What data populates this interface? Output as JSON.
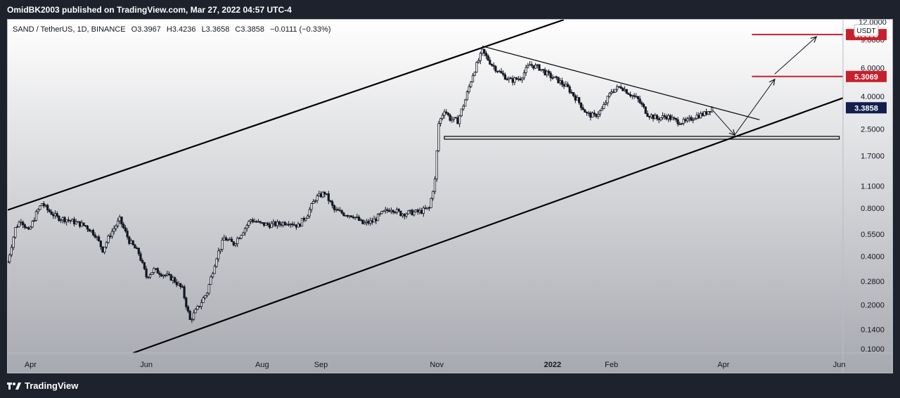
{
  "publish": {
    "text": "OmidBK2003 published on TradingView.com, Mar 27, 2022 04:57 UTC-4"
  },
  "legend": {
    "symbol": "SAND / TetherUS, 1D, BINANCE",
    "open": "O3.3967",
    "high": "H3.4236",
    "low": "L3.3658",
    "close": "C3.3858",
    "change": "−0.0111 (−0.33%)"
  },
  "footer": {
    "brand": "TradingView"
  },
  "colors": {
    "background_top": "#ffffff",
    "background_bottom": "#a7a9b0",
    "candles": "#131722",
    "trendline": "#000000",
    "target_line": "#c8202b",
    "target_label": "#c8202b",
    "last_price_label": "#131d4e"
  },
  "chart_data": {
    "type": "candlestick",
    "symbol": "SAND / TetherUS",
    "interval": "1D",
    "exchange": "BINANCE",
    "currency": "USDT",
    "y_scale": "log",
    "ylim": [
      0.1,
      12.0
    ],
    "y_ticks": [
      "12.0000",
      "9.0000",
      "6.0000",
      "4.0000",
      "2.5000",
      "1.7000",
      "1.1000",
      "0.8000",
      "0.5500",
      "0.4000",
      "0.2800",
      "0.2000",
      "0.1400",
      "0.1000"
    ],
    "x_range": [
      "2021-03-20",
      "2022-06-03"
    ],
    "x_ticks": [
      {
        "label": "Apr",
        "date": "2021-04-01"
      },
      {
        "label": "Jun",
        "date": "2021-06-01"
      },
      {
        "label": "Aug",
        "date": "2021-08-01"
      },
      {
        "label": "Sep",
        "date": "2021-09-01"
      },
      {
        "label": "Nov",
        "date": "2021-11-01"
      },
      {
        "label": "2022",
        "date": "2022-01-01"
      },
      {
        "label": "Feb",
        "date": "2022-02-01"
      },
      {
        "label": "Apr",
        "date": "2022-04-01"
      },
      {
        "label": "Jun",
        "date": "2022-06-01"
      }
    ],
    "price_path": [
      [
        "2021-03-20",
        0.37
      ],
      [
        "2021-03-24",
        0.6
      ],
      [
        "2021-03-27",
        0.68
      ],
      [
        "2021-03-31",
        0.57
      ],
      [
        "2021-04-04",
        0.74
      ],
      [
        "2021-04-07",
        0.86
      ],
      [
        "2021-04-10",
        0.78
      ],
      [
        "2021-04-15",
        0.7
      ],
      [
        "2021-04-20",
        0.68
      ],
      [
        "2021-04-25",
        0.65
      ],
      [
        "2021-04-30",
        0.62
      ],
      [
        "2021-05-05",
        0.55
      ],
      [
        "2021-05-09",
        0.44
      ],
      [
        "2021-05-13",
        0.55
      ],
      [
        "2021-05-18",
        0.68
      ],
      [
        "2021-05-23",
        0.5
      ],
      [
        "2021-05-28",
        0.42
      ],
      [
        "2021-06-01",
        0.3
      ],
      [
        "2021-06-05",
        0.33
      ],
      [
        "2021-06-10",
        0.31
      ],
      [
        "2021-06-15",
        0.29
      ],
      [
        "2021-06-20",
        0.25
      ],
      [
        "2021-06-24",
        0.16
      ],
      [
        "2021-06-28",
        0.19
      ],
      [
        "2021-07-03",
        0.24
      ],
      [
        "2021-07-08",
        0.4
      ],
      [
        "2021-07-12",
        0.52
      ],
      [
        "2021-07-17",
        0.48
      ],
      [
        "2021-07-22",
        0.58
      ],
      [
        "2021-07-26",
        0.68
      ],
      [
        "2021-07-31",
        0.64
      ],
      [
        "2021-08-05",
        0.63
      ],
      [
        "2021-08-10",
        0.64
      ],
      [
        "2021-08-15",
        0.66
      ],
      [
        "2021-08-20",
        0.62
      ],
      [
        "2021-08-25",
        0.74
      ],
      [
        "2021-08-29",
        0.92
      ],
      [
        "2021-09-03",
        1.0
      ],
      [
        "2021-09-08",
        0.78
      ],
      [
        "2021-09-13",
        0.74
      ],
      [
        "2021-09-18",
        0.72
      ],
      [
        "2021-09-23",
        0.64
      ],
      [
        "2021-09-28",
        0.66
      ],
      [
        "2021-10-03",
        0.74
      ],
      [
        "2021-10-08",
        0.8
      ],
      [
        "2021-10-13",
        0.74
      ],
      [
        "2021-10-18",
        0.75
      ],
      [
        "2021-10-23",
        0.76
      ],
      [
        "2021-10-28",
        0.8
      ],
      [
        "2021-10-31",
        1.2
      ],
      [
        "2021-11-02",
        2.7
      ],
      [
        "2021-11-05",
        3.3
      ],
      [
        "2021-11-08",
        2.9
      ],
      [
        "2021-11-12",
        2.8
      ],
      [
        "2021-11-16",
        3.8
      ],
      [
        "2021-11-20",
        5.5
      ],
      [
        "2021-11-25",
        7.6
      ],
      [
        "2021-11-30",
        6.3
      ],
      [
        "2021-12-05",
        5.5
      ],
      [
        "2021-12-10",
        5.0
      ],
      [
        "2021-12-15",
        5.2
      ],
      [
        "2021-12-20",
        6.3
      ],
      [
        "2021-12-25",
        6.0
      ],
      [
        "2021-12-30",
        5.4
      ],
      [
        "2022-01-04",
        5.0
      ],
      [
        "2022-01-09",
        4.5
      ],
      [
        "2022-01-14",
        3.8
      ],
      [
        "2022-01-19",
        3.1
      ],
      [
        "2022-01-23",
        3.0
      ],
      [
        "2022-01-27",
        3.3
      ],
      [
        "2022-02-01",
        4.3
      ],
      [
        "2022-02-06",
        4.6
      ],
      [
        "2022-02-10",
        4.2
      ],
      [
        "2022-02-15",
        3.8
      ],
      [
        "2022-02-20",
        3.1
      ],
      [
        "2022-02-25",
        2.9
      ],
      [
        "2022-03-02",
        3.0
      ],
      [
        "2022-03-07",
        2.8
      ],
      [
        "2022-03-12",
        2.75
      ],
      [
        "2022-03-17",
        3.0
      ],
      [
        "2022-03-22",
        3.1
      ],
      [
        "2022-03-26",
        3.39
      ]
    ],
    "drawings": [
      {
        "name": "upper-channel-line",
        "type": "trendline",
        "from": [
          "2021-03-20",
          0.78
        ],
        "to": [
          "2022-01-07",
          12.0
        ]
      },
      {
        "name": "lower-channel-line",
        "type": "trendline",
        "from": [
          "2021-05-25",
          0.1
        ],
        "to": [
          "2022-06-03",
          3.9
        ]
      },
      {
        "name": "descending-resistance-line",
        "type": "trendline",
        "from": [
          "2021-11-25",
          8.2
        ],
        "to": [
          "2022-04-20",
          2.85
        ]
      },
      {
        "name": "horizontal-support-line",
        "type": "horizontal",
        "from": "2021-11-05",
        "to": "2022-06-01",
        "value": 2.2
      },
      {
        "name": "target-line-1",
        "type": "horizontal",
        "from": "2022-04-16",
        "to": "2022-06-03",
        "value": 5.3069
      },
      {
        "name": "target-line-2",
        "type": "horizontal",
        "from": "2022-04-16",
        "to": "2022-06-03",
        "value": 9.6883
      },
      {
        "name": "arrow-down",
        "type": "arrow",
        "from": [
          "2022-03-26",
          3.3
        ],
        "to": [
          "2022-04-07",
          2.28
        ]
      },
      {
        "name": "arrow-up-1",
        "type": "arrow",
        "from": [
          "2022-04-07",
          2.3
        ],
        "to": [
          "2022-04-28",
          5.1
        ]
      },
      {
        "name": "arrow-up-2",
        "type": "arrow",
        "from": [
          "2022-04-28",
          5.5
        ],
        "to": [
          "2022-05-20",
          9.4
        ]
      }
    ],
    "price_labels": [
      {
        "name": "target-label-2",
        "text": "9.6883",
        "value": 9.6883,
        "kind": "target"
      },
      {
        "name": "target-label-1",
        "text": "5.3069",
        "value": 5.3069,
        "kind": "target"
      },
      {
        "name": "last-price-label",
        "text": "3.3858",
        "value": 3.3858,
        "kind": "last"
      }
    ],
    "currency_badge": "USDT"
  }
}
